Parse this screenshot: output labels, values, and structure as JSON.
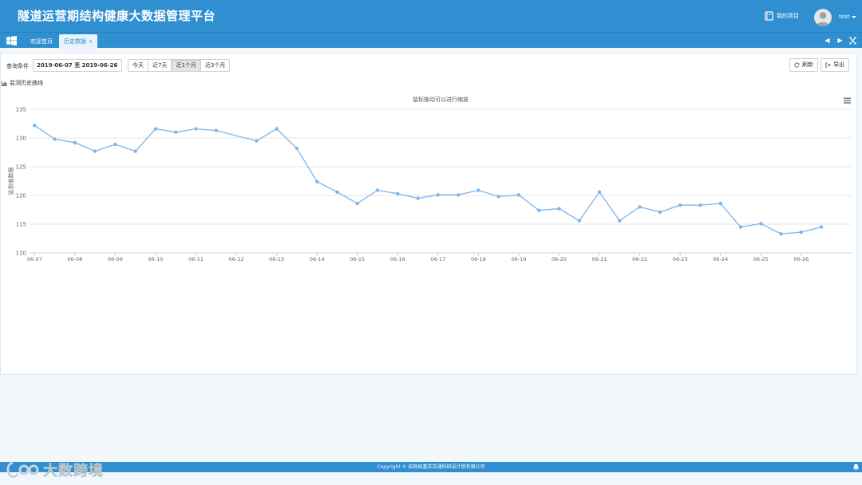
{
  "header": {
    "title": "隧道运营期结构健康大数据管理平台",
    "my_project_label": "我的项目",
    "user_name": "test"
  },
  "tabs": [
    {
      "label": "欢迎首页"
    },
    {
      "label": "历史数据",
      "close": "×"
    }
  ],
  "toolbar": {
    "query_label": "查询条件",
    "date_range": "2019-06-07 至 2019-06-26",
    "ranges": [
      "今天",
      "近7天",
      "近1个月",
      "近3个月"
    ],
    "active_range": "近1个月",
    "refresh_label": "刷新",
    "export_label": "导出"
  },
  "section": {
    "title": "监测历史曲线"
  },
  "chart_data": {
    "type": "line",
    "title": "鼠标拖动可以进行缩放",
    "ylabel": "监测值数据",
    "xlabel": "",
    "ylim": [
      110,
      135
    ],
    "yticks": [
      110,
      115,
      120,
      125,
      130,
      135
    ],
    "x_ticks": [
      "06-07",
      "06-08",
      "06-09",
      "06-10",
      "06-11",
      "06-12",
      "06-13",
      "06-14",
      "06-15",
      "06-16",
      "06-17",
      "06-18",
      "06-19",
      "06-20",
      "06-21",
      "06-22",
      "06-23",
      "06-24",
      "06-25",
      "06-26"
    ],
    "x_range": [
      "2019-06-06 21:00",
      "2019-06-27 06:00"
    ],
    "grid": "horizontal",
    "color": "#7cb5ec",
    "points": [
      {
        "x": "2019-06-07 00:00",
        "y": 132.2
      },
      {
        "x": "2019-06-07 12:00",
        "y": 129.8
      },
      {
        "x": "2019-06-08 00:00",
        "y": 129.2
      },
      {
        "x": "2019-06-08 12:00",
        "y": 127.7
      },
      {
        "x": "2019-06-09 00:00",
        "y": 128.9
      },
      {
        "x": "2019-06-09 12:00",
        "y": 127.7
      },
      {
        "x": "2019-06-10 00:00",
        "y": 131.6
      },
      {
        "x": "2019-06-10 12:00",
        "y": 131.0
      },
      {
        "x": "2019-06-11 00:00",
        "y": 131.6
      },
      {
        "x": "2019-06-11 12:00",
        "y": 131.3
      },
      {
        "x": "2019-06-12 12:00",
        "y": 129.5
      },
      {
        "x": "2019-06-13 00:00",
        "y": 131.6
      },
      {
        "x": "2019-06-13 12:00",
        "y": 128.2
      },
      {
        "x": "2019-06-14 00:00",
        "y": 122.4
      },
      {
        "x": "2019-06-14 12:00",
        "y": 120.6
      },
      {
        "x": "2019-06-15 00:00",
        "y": 118.6
      },
      {
        "x": "2019-06-15 12:00",
        "y": 120.9
      },
      {
        "x": "2019-06-16 00:00",
        "y": 120.3
      },
      {
        "x": "2019-06-16 12:00",
        "y": 119.5
      },
      {
        "x": "2019-06-17 00:00",
        "y": 120.1
      },
      {
        "x": "2019-06-17 12:00",
        "y": 120.1
      },
      {
        "x": "2019-06-18 00:00",
        "y": 120.9
      },
      {
        "x": "2019-06-18 12:00",
        "y": 119.8
      },
      {
        "x": "2019-06-19 00:00",
        "y": 120.1
      },
      {
        "x": "2019-06-19 12:00",
        "y": 117.4
      },
      {
        "x": "2019-06-20 00:00",
        "y": 117.7
      },
      {
        "x": "2019-06-20 12:00",
        "y": 115.6
      },
      {
        "x": "2019-06-21 00:00",
        "y": 120.6
      },
      {
        "x": "2019-06-21 12:00",
        "y": 115.6
      },
      {
        "x": "2019-06-22 00:00",
        "y": 118.0
      },
      {
        "x": "2019-06-22 12:00",
        "y": 117.1
      },
      {
        "x": "2019-06-23 00:00",
        "y": 118.3
      },
      {
        "x": "2019-06-23 12:00",
        "y": 118.3
      },
      {
        "x": "2019-06-24 00:00",
        "y": 118.6
      },
      {
        "x": "2019-06-24 12:00",
        "y": 114.5
      },
      {
        "x": "2019-06-25 00:00",
        "y": 115.1
      },
      {
        "x": "2019-06-25 12:00",
        "y": 113.3
      },
      {
        "x": "2019-06-26 00:00",
        "y": 113.6
      },
      {
        "x": "2019-06-26 12:00",
        "y": 114.5
      }
    ]
  },
  "footer": {
    "copyright": "Copyright © 招商局重庆交通科研设计院有限公司"
  },
  "watermark": {
    "text": "大数跨境"
  },
  "colors": {
    "primary": "#2f8fd1",
    "series": "#7cb5ec"
  }
}
